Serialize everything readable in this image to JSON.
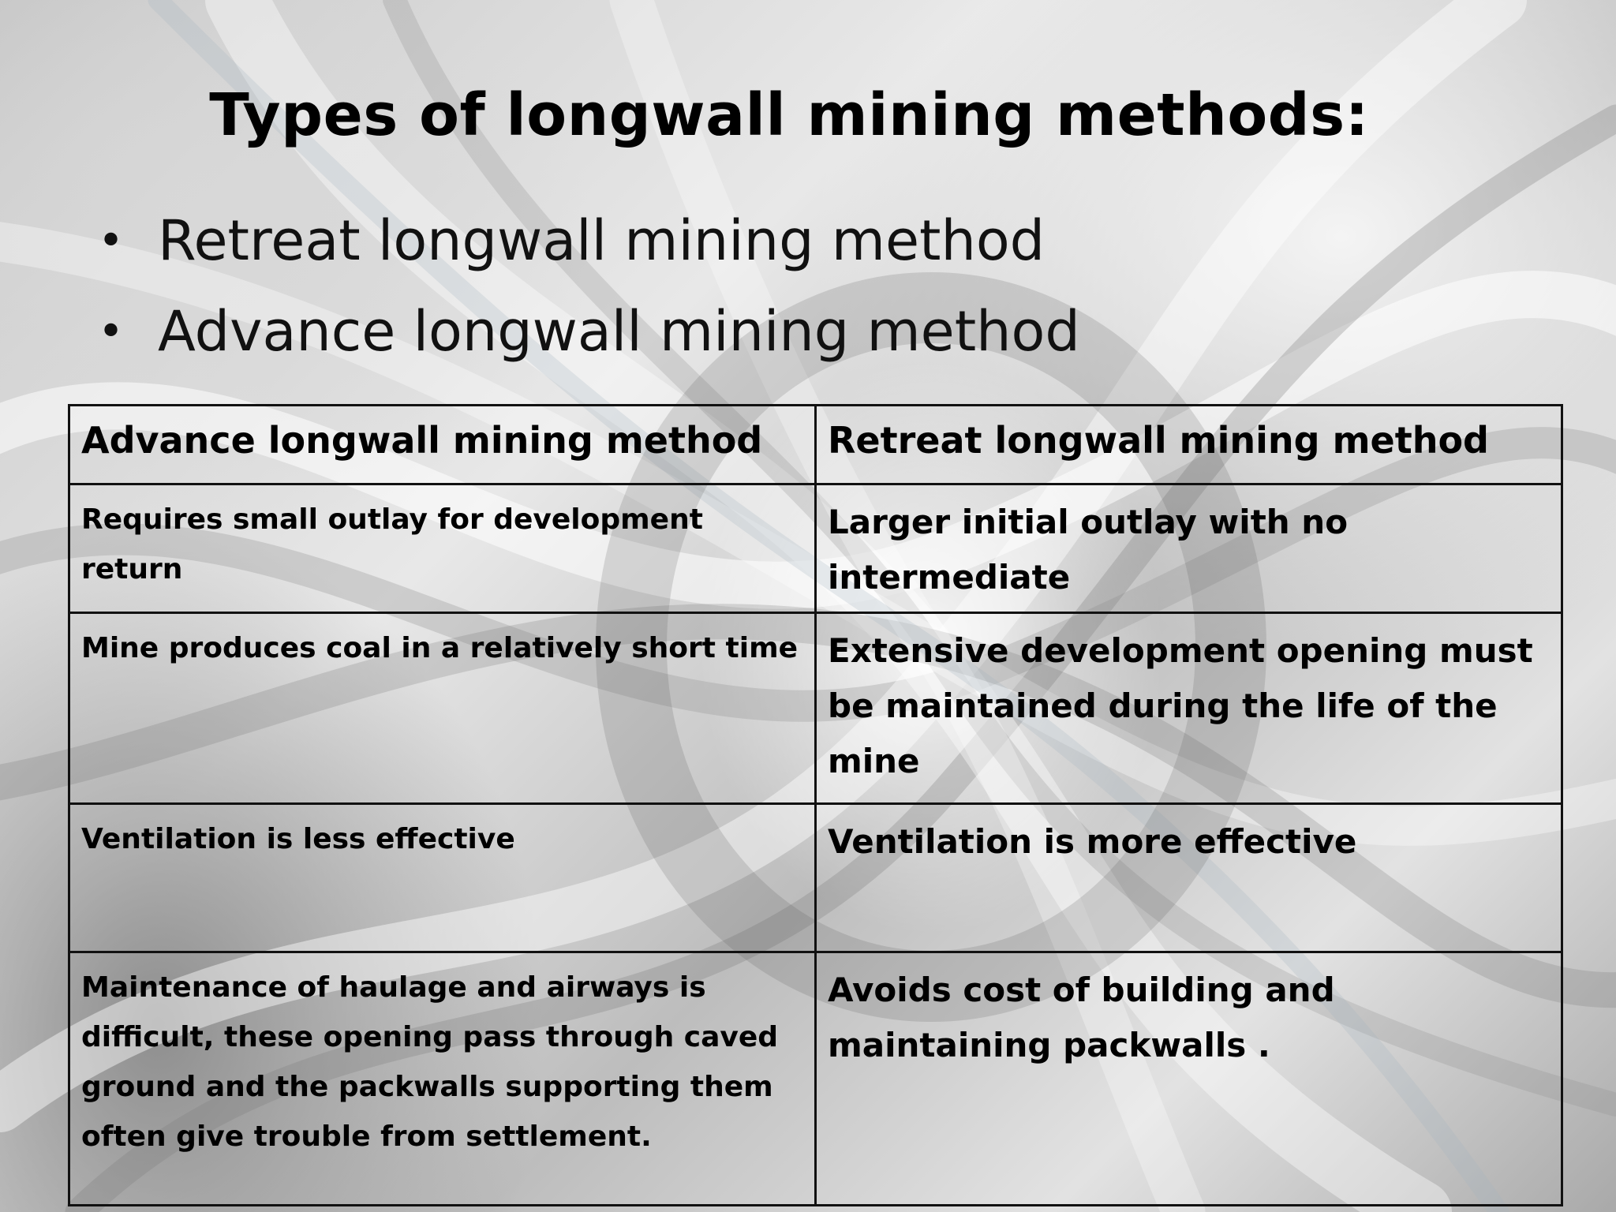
{
  "slide": {
    "title": "Types of longwall mining methods:",
    "bullets": [
      "Retreat longwall mining  method",
      "Advance longwall mining method"
    ]
  },
  "table": {
    "headers": [
      "Advance longwall mining method",
      "Retreat longwall mining method"
    ],
    "rows": [
      [
        "Requires small outlay for development return",
        "Larger initial outlay with no intermediate"
      ],
      [
        "Mine produces coal in a relatively short time",
        "Extensive development opening must be maintained during the life of the mine"
      ],
      [
        "Ventilation is less effective",
        "Ventilation is more effective"
      ],
      [
        "Maintenance of haulage and airways is difficult, these opening pass through caved ground and the packwalls supporting them often give trouble from settlement.",
        "Avoids cost of building and maintaining packwalls ."
      ]
    ]
  },
  "theme": {
    "bullet_glyph": "•",
    "text_color": "#000000",
    "border_color": "#111111"
  }
}
